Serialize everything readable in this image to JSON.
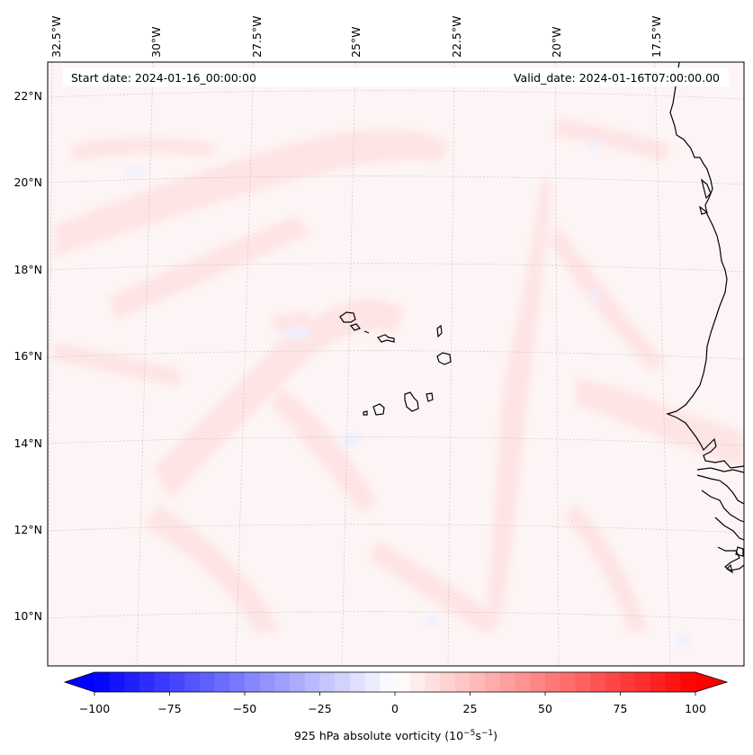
{
  "map": {
    "projection": "Lambert conformal (regional model domain)",
    "header": {
      "start_date": "Start date: 2024-01-16_00:00:00",
      "valid_date": "Valid_date: 2024-01-16T07:00:00.00"
    },
    "lon_labels": [
      "32.5°W",
      "30°W",
      "27.5°W",
      "25°W",
      "22.5°W",
      "20°W",
      "17.5°W"
    ],
    "lat_labels": [
      "22°N",
      "20°N",
      "18°N",
      "16°N",
      "14°N",
      "12°N",
      "10°N"
    ],
    "colors": {
      "field_background": "#fdf5f5",
      "positive_light": "#ffe3e3",
      "negative_light": "#eef0ff",
      "coastline": "#000000",
      "gridline": "#c8c8c8"
    }
  },
  "colorbar": {
    "label": "925 hPa absolute vorticity (10",
    "label_exp1": "−5",
    "label_mid": "s",
    "label_exp2": "−1",
    "label_end": ")",
    "ticks": [
      "−100",
      "−75",
      "−50",
      "−25",
      "0",
      "25",
      "50",
      "75",
      "100"
    ],
    "min": -100,
    "max": 100,
    "step": 5,
    "cmap": "bwr"
  }
}
